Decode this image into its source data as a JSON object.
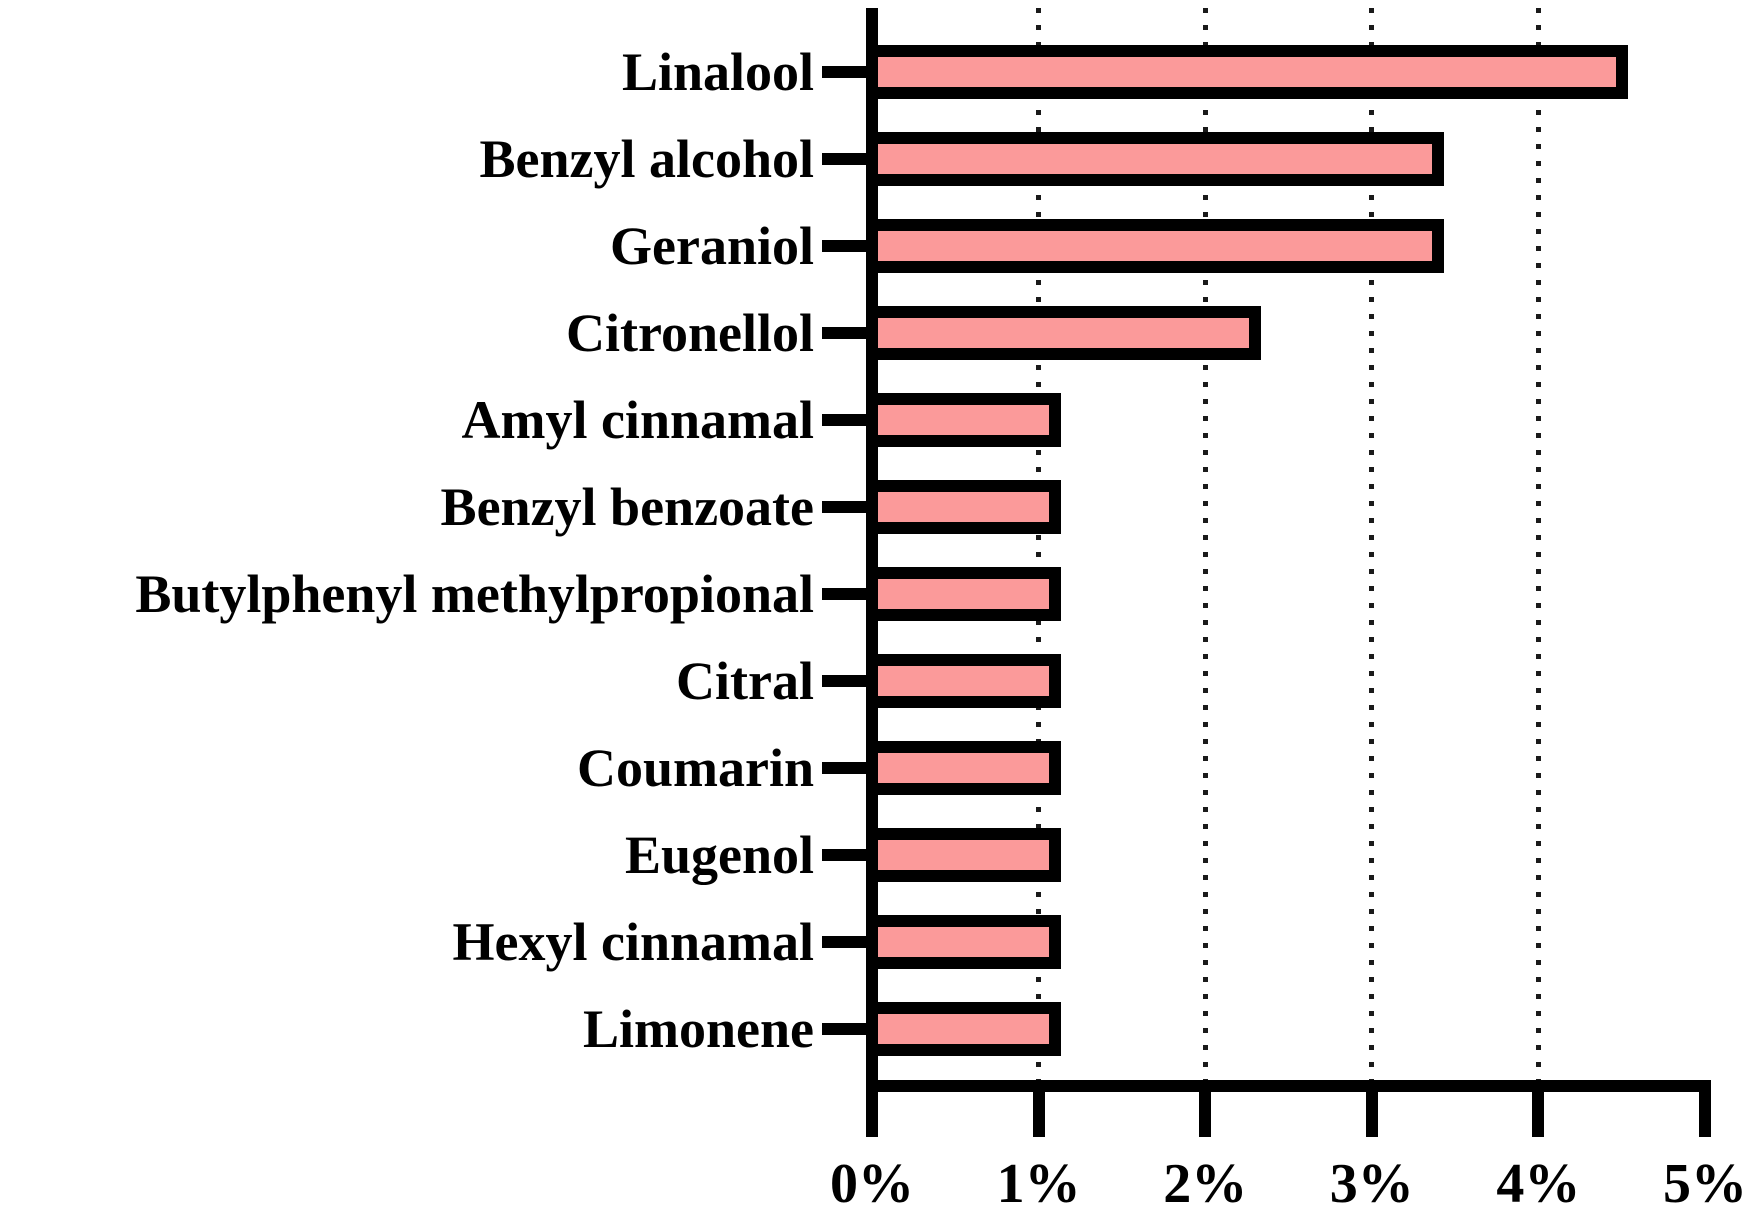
{
  "chart_data": {
    "type": "bar",
    "orientation": "horizontal",
    "title": "",
    "xlabel": "",
    "ylabel": "",
    "categories": [
      "Linalool",
      "Benzyl alcohol",
      "Geraniol",
      "Citronellol",
      "Amyl cinnamal",
      "Benzyl benzoate",
      "Butylphenyl methylpropional",
      "Citral",
      "Coumarin",
      "Eugenol",
      "Hexyl cinnamal",
      "Limonene"
    ],
    "values": [
      4.5,
      3.4,
      3.4,
      2.3,
      1.1,
      1.1,
      1.1,
      1.1,
      1.1,
      1.1,
      1.1,
      1.1
    ],
    "value_unit": "%",
    "xlim": [
      0,
      5
    ],
    "x_tick_values": [
      0,
      1,
      2,
      3,
      4,
      5
    ],
    "x_tick_labels": [
      "0%",
      "1%",
      "2%",
      "3%",
      "4%",
      "5%"
    ],
    "gridlines_at": [
      1,
      2,
      3,
      4
    ],
    "grid_style": "dotted",
    "legend": null,
    "colors": {
      "bar_fill": "#FB9A9A",
      "bar_border": "#000000",
      "axis": "#000000",
      "grid": "#1A1A1A",
      "background": "#FFFFFF"
    }
  }
}
